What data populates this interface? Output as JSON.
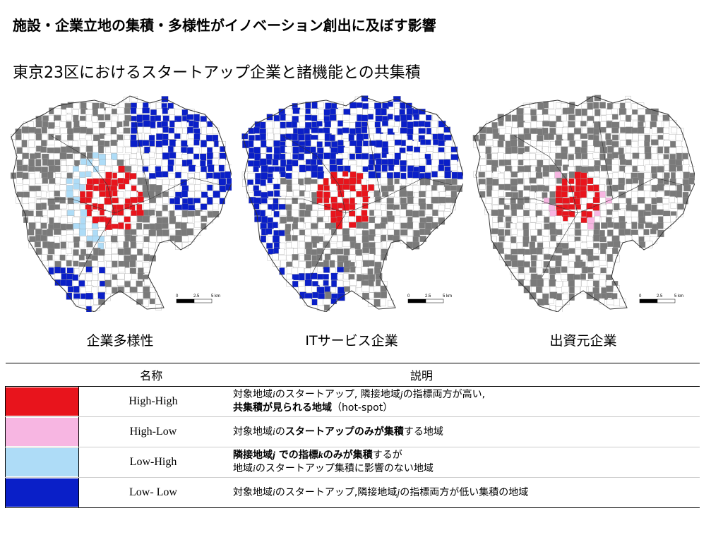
{
  "header": {
    "title": "施設・企業立地の集積・多様性がイノベーション創出に及ぼす影響",
    "subtitle": "東京23区におけるスタートアップ企業と諸機能との共集積"
  },
  "maps": [
    {
      "caption": "企業多様性",
      "distribution": "diversity"
    },
    {
      "caption": "ITサービス企業",
      "distribution": "it_services"
    },
    {
      "caption": "出資元企業",
      "distribution": "investors"
    }
  ],
  "scale_bar": {
    "labels": [
      "0",
      "2.5",
      "5 km"
    ]
  },
  "colors": {
    "high_high": "#e8141c",
    "high_low": "#f7b6e2",
    "low_high": "#aedcf7",
    "low_low": "#0a1fc8",
    "not_significant": "#7a7a7a",
    "no_data": "#ffffff"
  },
  "legend": {
    "headers": {
      "name": "名称",
      "description": "説明"
    },
    "rows": [
      {
        "name": "High-High",
        "color": "#e8141c",
        "line1": [
          {
            "t": "対象地域"
          },
          {
            "t": "i",
            "i": true
          },
          {
            "t": "のスタートアップ, 隣接地域"
          },
          {
            "t": "j",
            "i": true
          },
          {
            "t": "の指標両方が高い,"
          }
        ],
        "line2": [
          {
            "t": "共集積が見られる地域",
            "b": true
          },
          {
            "t": "（hot-spot）"
          }
        ]
      },
      {
        "name": "High-Low",
        "color": "#f7b6e2",
        "line1": [
          {
            "t": "対象地域"
          },
          {
            "t": "i",
            "i": true
          },
          {
            "t": "の"
          },
          {
            "t": "スタートアップのみが集積",
            "b": true
          },
          {
            "t": "する地域"
          }
        ],
        "line2": []
      },
      {
        "name": "Low-High",
        "color": "#aedcf7",
        "line1": [
          {
            "t": "隣接地域",
            "b": true
          },
          {
            "t": "j",
            "b": true,
            "i": true
          },
          {
            "t": " での指標",
            "b": true
          },
          {
            "t": "k",
            "b": true,
            "i": true
          },
          {
            "t": "のみが集積",
            "b": true
          },
          {
            "t": "するが"
          }
        ],
        "line2": [
          {
            "t": "地域"
          },
          {
            "t": "i",
            "i": true
          },
          {
            "t": "のスタートアップ集積に影響のない地域"
          }
        ]
      },
      {
        "name": "Low- Low",
        "color": "#0a1fc8",
        "line1": [
          {
            "t": "対象地域"
          },
          {
            "t": "i",
            "i": true
          },
          {
            "t": "のスタートアップ,隣接地域"
          },
          {
            "t": "j",
            "i": true
          },
          {
            "t": "の指標両方が低い集積の地域"
          }
        ],
        "line2": []
      }
    ]
  }
}
